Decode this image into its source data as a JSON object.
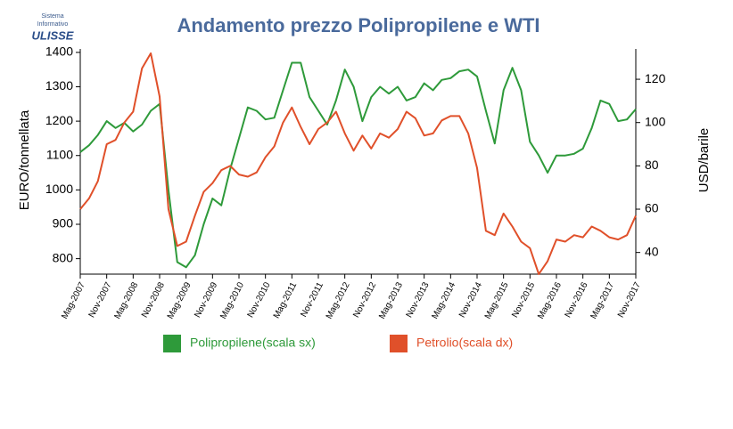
{
  "logo": {
    "line1": "Sistema",
    "line2": "Informativo",
    "name": "ULISSE"
  },
  "chart_data": {
    "type": "line",
    "title": "Andamento prezzo Polipropilene e WTI",
    "y_label": "EURO/tonnellata",
    "y2_label": "USD/barile",
    "categories": [
      "Mag-2007",
      null,
      null,
      "Nov-2007",
      null,
      null,
      "Mag-2008",
      null,
      null,
      "Nov-2008",
      null,
      null,
      "Mag-2009",
      null,
      null,
      "Nov-2009",
      null,
      null,
      "Mag-2010",
      null,
      null,
      "Nov-2010",
      null,
      null,
      "Mag-2011",
      null,
      null,
      "Nov-2011",
      null,
      null,
      "Mag-2012",
      null,
      null,
      "Nov-2012",
      null,
      null,
      "Mag-2013",
      null,
      null,
      "Nov-2013",
      null,
      null,
      "Mag-2014",
      null,
      null,
      "Nov-2014",
      null,
      null,
      "Mag-2015",
      null,
      null,
      "Nov-2015",
      null,
      null,
      "Mag-2016",
      null,
      null,
      "Nov-2016",
      null,
      null,
      "Mag-2017",
      null,
      null,
      "Nov-2017"
    ],
    "series": [
      {
        "name": "Polipropilene(scala sx)",
        "color": "#2e9a3a",
        "axis": "y",
        "values": [
          1110,
          1130,
          1160,
          1200,
          1180,
          1195,
          1170,
          1190,
          1230,
          1250,
          1000,
          790,
          775,
          810,
          900,
          975,
          955,
          1060,
          1150,
          1240,
          1230,
          1205,
          1210,
          1290,
          1370,
          1370,
          1270,
          1230,
          1190,
          1260,
          1350,
          1300,
          1200,
          1270,
          1300,
          1280,
          1300,
          1260,
          1270,
          1310,
          1290,
          1320,
          1325,
          1345,
          1350,
          1330,
          1230,
          1135,
          1290,
          1355,
          1290,
          1140,
          1100,
          1050,
          1100,
          1100,
          1105,
          1120,
          1180,
          1260,
          1250,
          1200,
          1205,
          1235
        ]
      },
      {
        "name": "Petrolio(scala dx)",
        "color": "#e0502a",
        "axis": "y2",
        "values": [
          60,
          65,
          73,
          90,
          92,
          100,
          105,
          125,
          132,
          112,
          60,
          43,
          45,
          57,
          68,
          72,
          78,
          80,
          76,
          75,
          77,
          84,
          89,
          100,
          107,
          98,
          90,
          97,
          100,
          105,
          95,
          87,
          94,
          88,
          95,
          93,
          97,
          105,
          102,
          94,
          95,
          101,
          103,
          103,
          95,
          79,
          50,
          48,
          58,
          52,
          45,
          42,
          30,
          36,
          46,
          45,
          48,
          47,
          52,
          50,
          47,
          46,
          48,
          57
        ]
      }
    ],
    "ylim": [
      755,
      1410
    ],
    "yticks": [
      800,
      900,
      1000,
      1100,
      1200,
      1300,
      1400
    ],
    "y2lim": [
      30,
      134
    ],
    "y2ticks": [
      40,
      60,
      80,
      100,
      120
    ],
    "legend": "bottom"
  }
}
